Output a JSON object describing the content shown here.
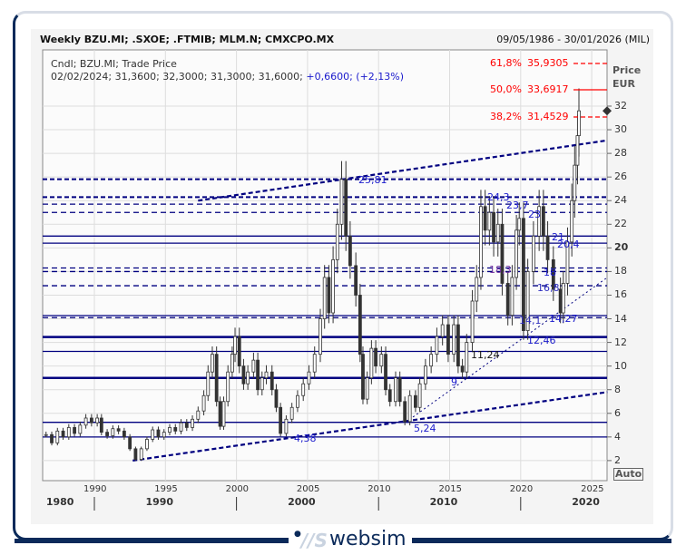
{
  "header": {
    "title": "Weekly BZU.MI; .SXOE; .FTMIB; MLM.N; CMXCPO.MX",
    "date_range": "09/05/1986 - 30/01/2026 (MIL)",
    "series_label": "Cndl; BZU.MI; Trade Price",
    "ohlc_text": "02/02/2024; 31,3600; 32,3000; 31,3000; 31,6000;",
    "change_text": "+0,6600; (+2,13%)"
  },
  "axis": {
    "price_label": "Price",
    "currency": "EUR",
    "auto_label": "Auto"
  },
  "brand": {
    "logo_text": "websim",
    "logo_mark": "WS"
  },
  "chart_data": {
    "type": "candlestick",
    "ylim": [
      1,
      33
    ],
    "xlim": [
      1986.4,
      2026.1
    ],
    "y_ticks": [
      "2",
      "4",
      "6",
      "8",
      "10",
      "12",
      "14",
      "16",
      "18",
      "20",
      "22",
      "24",
      "26",
      "28",
      "30",
      "32"
    ],
    "x_ticks": [
      "1990",
      "1995",
      "2000",
      "2005",
      "2010",
      "2015",
      "2020",
      "2025"
    ],
    "x_decades": [
      "1980",
      "1990",
      "2000",
      "2010",
      "2020"
    ],
    "grid": true,
    "last_price": 31.6,
    "series": [
      [
        1986.6,
        4.2
      ],
      [
        1987.0,
        3.5
      ],
      [
        1987.4,
        4.5
      ],
      [
        1987.8,
        4.0
      ],
      [
        1988.2,
        4.8
      ],
      [
        1988.6,
        4.3
      ],
      [
        1989.0,
        5.0
      ],
      [
        1989.4,
        5.6
      ],
      [
        1989.8,
        5.2
      ],
      [
        1990.2,
        5.6
      ],
      [
        1990.5,
        4.4
      ],
      [
        1990.9,
        4.1
      ],
      [
        1991.3,
        4.7
      ],
      [
        1991.7,
        4.5
      ],
      [
        1992.1,
        4.0
      ],
      [
        1992.5,
        3.0
      ],
      [
        1992.9,
        2.1
      ],
      [
        1993.3,
        3.0
      ],
      [
        1993.7,
        3.8
      ],
      [
        1994.1,
        4.6
      ],
      [
        1994.5,
        4.0
      ],
      [
        1994.9,
        4.4
      ],
      [
        1995.3,
        4.8
      ],
      [
        1995.7,
        4.5
      ],
      [
        1996.1,
        5.2
      ],
      [
        1996.5,
        4.8
      ],
      [
        1996.9,
        5.5
      ],
      [
        1997.3,
        6.2
      ],
      [
        1997.7,
        7.5
      ],
      [
        1998.0,
        9.5
      ],
      [
        1998.3,
        11.0
      ],
      [
        1998.6,
        7.0
      ],
      [
        1998.85,
        4.9
      ],
      [
        1999.1,
        7.0
      ],
      [
        1999.4,
        9.5
      ],
      [
        1999.7,
        11.0
      ],
      [
        1999.9,
        12.5
      ],
      [
        2000.2,
        10.0
      ],
      [
        2000.5,
        8.5
      ],
      [
        2000.8,
        9.5
      ],
      [
        2001.2,
        10.5
      ],
      [
        2001.5,
        8.0
      ],
      [
        2001.8,
        9.0
      ],
      [
        2002.1,
        9.5
      ],
      [
        2002.5,
        8.0
      ],
      [
        2002.8,
        6.5
      ],
      [
        2003.1,
        4.3
      ],
      [
        2003.5,
        5.5
      ],
      [
        2003.9,
        6.5
      ],
      [
        2004.3,
        7.5
      ],
      [
        2004.7,
        8.5
      ],
      [
        2005.1,
        9.5
      ],
      [
        2005.5,
        11.0
      ],
      [
        2005.9,
        14.0
      ],
      [
        2006.2,
        17.5
      ],
      [
        2006.5,
        14.5
      ],
      [
        2006.8,
        19.0
      ],
      [
        2007.1,
        22.0
      ],
      [
        2007.4,
        25.8
      ],
      [
        2007.7,
        21.0
      ],
      [
        2008.0,
        18.5
      ],
      [
        2008.4,
        16.0
      ],
      [
        2008.7,
        11.0
      ],
      [
        2008.9,
        7.2
      ],
      [
        2009.2,
        9.0
      ],
      [
        2009.5,
        11.5
      ],
      [
        2009.8,
        10.0
      ],
      [
        2010.2,
        11.0
      ],
      [
        2010.5,
        8.0
      ],
      [
        2010.8,
        7.0
      ],
      [
        2011.2,
        9.0
      ],
      [
        2011.5,
        7.0
      ],
      [
        2011.85,
        5.3
      ],
      [
        2012.2,
        7.5
      ],
      [
        2012.6,
        6.5
      ],
      [
        2012.9,
        8.5
      ],
      [
        2013.3,
        10.0
      ],
      [
        2013.7,
        11.0
      ],
      [
        2014.1,
        12.5
      ],
      [
        2014.5,
        13.5
      ],
      [
        2014.9,
        11.0
      ],
      [
        2015.3,
        13.5
      ],
      [
        2015.6,
        10.0
      ],
      [
        2015.9,
        9.5
      ],
      [
        2016.2,
        12.0
      ],
      [
        2016.6,
        15.5
      ],
      [
        2016.9,
        17.5
      ],
      [
        2017.2,
        23.5
      ],
      [
        2017.5,
        21.5
      ],
      [
        2017.8,
        23.0
      ],
      [
        2018.1,
        20.5
      ],
      [
        2018.4,
        22.0
      ],
      [
        2018.7,
        17.0
      ],
      [
        2019.1,
        14.3
      ],
      [
        2019.4,
        17.5
      ],
      [
        2019.7,
        21.5
      ],
      [
        2019.9,
        22.5
      ],
      [
        2020.2,
        13.0
      ],
      [
        2020.5,
        18.0
      ],
      [
        2020.9,
        21.0
      ],
      [
        2021.3,
        23.5
      ],
      [
        2021.6,
        21.0
      ],
      [
        2021.9,
        19.0
      ],
      [
        2022.3,
        16.5
      ],
      [
        2022.8,
        14.5
      ],
      [
        2023.0,
        17.0
      ],
      [
        2023.3,
        20.5
      ],
      [
        2023.6,
        24.0
      ],
      [
        2023.8,
        27.0
      ],
      [
        2024.0,
        29.5
      ],
      [
        2024.1,
        31.6
      ]
    ],
    "levels": [
      {
        "value": 25.81,
        "label": "25,81",
        "style": "dashed-thick"
      },
      {
        "value": 24.3,
        "label": "24,3",
        "style": "dashed-thick"
      },
      {
        "value": 23.7,
        "label": "23,7",
        "style": "dashed"
      },
      {
        "value": 23,
        "label": "23",
        "style": "dashed"
      },
      {
        "value": 21,
        "label": "21",
        "style": "solid"
      },
      {
        "value": 20.4,
        "label": "20,4",
        "style": "solid"
      },
      {
        "value": 18.3,
        "label": "18,3",
        "style": "dashed"
      },
      {
        "value": 18,
        "label": "18",
        "style": "dashed"
      },
      {
        "value": 16.8,
        "label": "16,8",
        "style": "dashed"
      },
      {
        "value": 14.27,
        "label": "14,27",
        "style": "solid"
      },
      {
        "value": 14.1,
        "label": "14,1",
        "style": "dashed"
      },
      {
        "value": 12.46,
        "label": "12,46",
        "style": "solid-thick"
      },
      {
        "value": 11.24,
        "label": "11,24",
        "style": "solid"
      },
      {
        "value": 9,
        "label": "9",
        "style": "solid-thick"
      },
      {
        "value": 5.24,
        "label": "5,24",
        "style": "solid"
      },
      {
        "value": 4.0,
        "label": "",
        "style": "solid"
      }
    ],
    "trendlines": [
      {
        "from": [
          1997.3,
          24.0
        ],
        "to": [
          2026.1,
          29.1
        ],
        "style": "dashed-thick"
      },
      {
        "from": [
          1992.7,
          2.0
        ],
        "to": [
          2026.1,
          7.8
        ],
        "style": "dashed-thick"
      },
      {
        "from": [
          2011.9,
          5.24
        ],
        "to": [
          2026.1,
          17.5
        ],
        "style": "dotted"
      }
    ],
    "trend_labels": [
      {
        "label": "4,38",
        "x": 2003.5,
        "y": 4.38
      }
    ],
    "fibonacci": [
      {
        "pct": "61,8%",
        "value": "35,9305",
        "style": "dashed"
      },
      {
        "pct": "50,0%",
        "value": "33,6917",
        "style": "solid"
      },
      {
        "pct": "38,2%",
        "value": "31,4529",
        "style": "dashed"
      }
    ],
    "colors": {
      "candle": "#333333",
      "levels": "#000080",
      "labels": "#1a1acc",
      "fib": "#ff0000",
      "frame": "#0b2a5a"
    }
  }
}
